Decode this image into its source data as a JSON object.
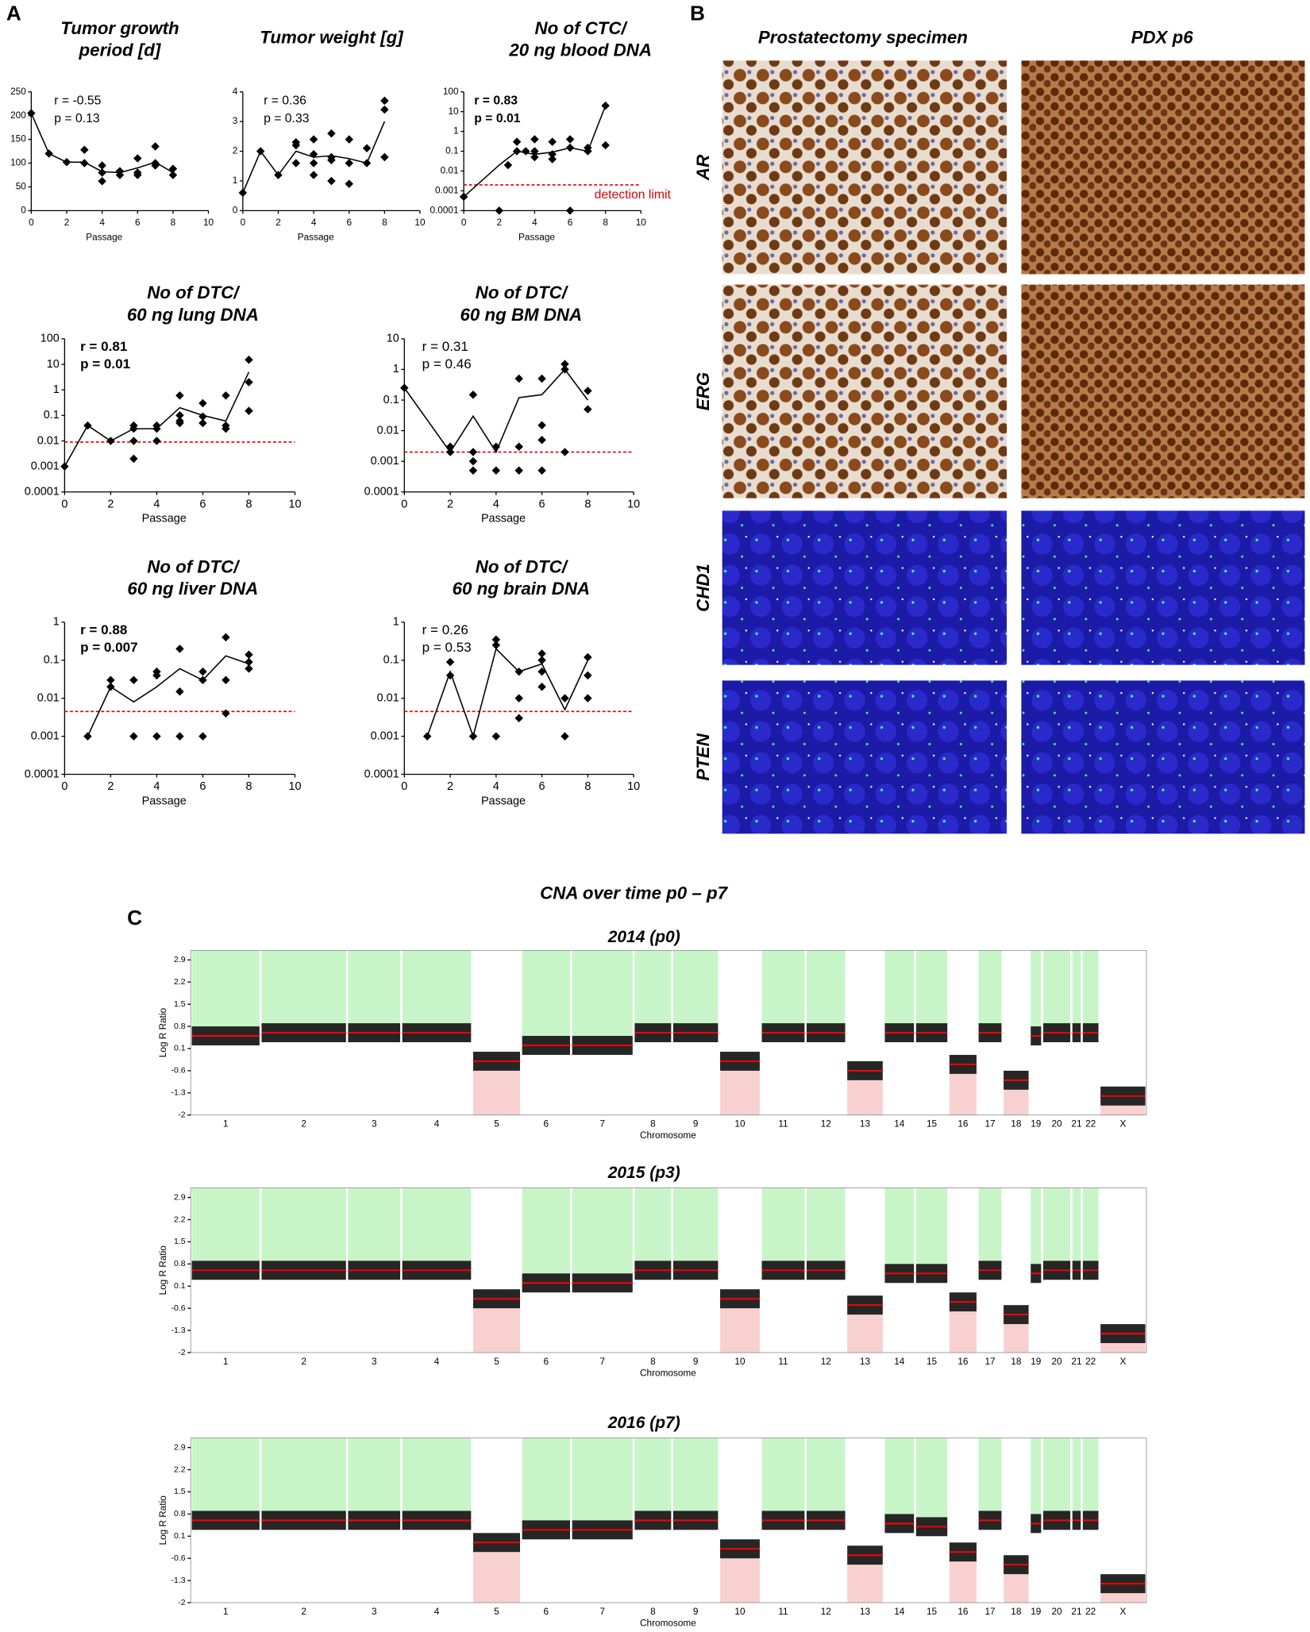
{
  "panel_labels": {
    "a": "A",
    "b": "B",
    "c": "C"
  },
  "images": {
    "columns": [
      "Prostatectomy specimen",
      "PDX p6"
    ],
    "rows": [
      "AR",
      "ERG",
      "CHD1",
      "PTEN"
    ]
  },
  "cna_title": "CNA over time p0 – p7",
  "chart_data": [
    {
      "type": "line",
      "title": [
        "Tumor growth",
        "period [d]"
      ],
      "stats": [
        "r = -0.55",
        "p = 0.13"
      ],
      "stats_bold": false,
      "xlabel": "Passage",
      "xlim": [
        0,
        10
      ],
      "xticks": [
        0,
        2,
        4,
        6,
        8,
        10
      ],
      "ylim": [
        0,
        250
      ],
      "yticks": [
        0,
        50,
        100,
        150,
        200,
        250
      ],
      "log": false,
      "color": "#000000",
      "line": {
        "x": [
          0,
          1,
          2,
          3,
          4,
          5,
          6,
          7,
          8
        ],
        "values": [
          205,
          120,
          102,
          102,
          82,
          80,
          90,
          102,
          80
        ]
      },
      "points": {
        "x": [
          0,
          1,
          2,
          3,
          3,
          4,
          4,
          4,
          5,
          5,
          6,
          6,
          6,
          7,
          7,
          7,
          8,
          8
        ],
        "values": [
          205,
          120,
          102,
          128,
          100,
          95,
          80,
          62,
          83,
          75,
          110,
          80,
          75,
          135,
          100,
          95,
          88,
          75
        ]
      }
    },
    {
      "type": "line",
      "title": [
        "Tumor weight [g]"
      ],
      "stats": [
        "r = 0.36",
        "p = 0.33"
      ],
      "stats_bold": false,
      "xlabel": "Passage",
      "xlim": [
        0,
        10
      ],
      "xticks": [
        0,
        2,
        4,
        6,
        8,
        10
      ],
      "ylim": [
        0,
        4
      ],
      "yticks": [
        0,
        1,
        2,
        3,
        4
      ],
      "log": false,
      "color": "#000000",
      "line": {
        "x": [
          0,
          1,
          2,
          3,
          4,
          5,
          6,
          7,
          8
        ],
        "values": [
          0.6,
          2.0,
          1.2,
          2.0,
          1.8,
          1.85,
          1.75,
          1.6,
          3.0
        ]
      },
      "points": {
        "x": [
          0,
          1,
          2,
          3,
          3,
          3,
          4,
          4,
          4,
          4,
          5,
          5,
          5,
          5,
          6,
          6,
          6,
          7,
          7,
          8,
          8,
          8
        ],
        "values": [
          0.6,
          2.0,
          1.2,
          2.3,
          2.2,
          1.6,
          2.4,
          1.9,
          1.6,
          1.2,
          2.6,
          1.8,
          1.7,
          1.0,
          2.4,
          1.6,
          0.9,
          2.1,
          1.6,
          3.7,
          3.4,
          1.8
        ]
      }
    },
    {
      "type": "line",
      "title": [
        "No of CTC/",
        "20 ng blood DNA"
      ],
      "stats": [
        "r = 0.83",
        "p = 0.01"
      ],
      "stats_bold": true,
      "xlabel": "Passage",
      "xlim": [
        0,
        10
      ],
      "xticks": [
        0,
        2,
        4,
        6,
        8,
        10
      ],
      "ylim": [
        0.0001,
        100
      ],
      "yticks": [
        0.0001,
        0.001,
        0.01,
        0.1,
        1,
        10,
        100
      ],
      "log": true,
      "color": "#000000",
      "threshold": {
        "value": 0.002,
        "color": "#e00000"
      },
      "threshold_label": "detection limit",
      "line": {
        "x": [
          0,
          2,
          3,
          4,
          5,
          6,
          7,
          8
        ],
        "values": [
          0.0005,
          0.02,
          0.1,
          0.07,
          0.09,
          0.15,
          0.1,
          20
        ]
      },
      "points": {
        "x": [
          0,
          2,
          2.5,
          3,
          3,
          3.5,
          4,
          4,
          4,
          5,
          5,
          5,
          6,
          6,
          6,
          7,
          7,
          8,
          8
        ],
        "values": [
          0.0005,
          0.0001,
          0.02,
          0.3,
          0.1,
          0.1,
          0.4,
          0.1,
          0.05,
          0.3,
          0.07,
          0.04,
          0.4,
          0.15,
          0.0001,
          0.15,
          0.1,
          20,
          0.2
        ]
      }
    },
    {
      "type": "line",
      "title": [
        "No of DTC/",
        "60 ng lung DNA"
      ],
      "stats": [
        "r = 0.81",
        "p = 0.01"
      ],
      "stats_bold": true,
      "xlabel": "Passage",
      "xlim": [
        0,
        10
      ],
      "xticks": [
        0,
        2,
        4,
        6,
        8,
        10
      ],
      "ylim": [
        0.0001,
        100
      ],
      "yticks": [
        0.0001,
        0.001,
        0.01,
        0.1,
        1,
        10,
        100
      ],
      "log": true,
      "color": "#000000",
      "threshold": {
        "value": 0.009,
        "color": "#e00000"
      },
      "line": {
        "x": [
          0,
          1,
          2,
          3,
          4,
          5,
          6,
          7,
          8
        ],
        "values": [
          0.001,
          0.04,
          0.01,
          0.03,
          0.03,
          0.2,
          0.1,
          0.06,
          5
        ]
      },
      "points": {
        "x": [
          0,
          1,
          2,
          3,
          3,
          3,
          3,
          4,
          4,
          4,
          5,
          5,
          5,
          5,
          6,
          6,
          6,
          7,
          7,
          7,
          8,
          8,
          8
        ],
        "values": [
          0.001,
          0.04,
          0.01,
          0.04,
          0.03,
          0.01,
          0.002,
          0.04,
          0.03,
          0.01,
          0.6,
          0.1,
          0.06,
          0.05,
          0.3,
          0.09,
          0.05,
          0.6,
          0.04,
          0.03,
          15,
          2,
          0.15
        ]
      }
    },
    {
      "type": "line",
      "title": [
        "No of DTC/",
        "60 ng BM DNA"
      ],
      "stats": [
        "r = 0.31",
        "p = 0.46"
      ],
      "stats_bold": false,
      "xlabel": "Passage",
      "xlim": [
        0,
        10
      ],
      "xticks": [
        0,
        2,
        4,
        6,
        8,
        10
      ],
      "ylim": [
        0.0001,
        10
      ],
      "yticks": [
        0.0001,
        0.001,
        0.01,
        0.1,
        1,
        10
      ],
      "log": true,
      "color": "#000000",
      "threshold": {
        "value": 0.002,
        "color": "#e00000"
      },
      "line": {
        "x": [
          0,
          2,
          3,
          4,
          5,
          6,
          7,
          8
        ],
        "values": [
          0.25,
          0.002,
          0.03,
          0.002,
          0.12,
          0.15,
          1,
          0.1
        ]
      },
      "points": {
        "x": [
          0,
          2,
          2,
          3,
          3,
          3,
          3,
          4,
          4,
          5,
          5,
          5,
          6,
          6,
          6,
          6,
          7,
          7,
          7,
          8,
          8
        ],
        "values": [
          0.25,
          0.003,
          0.002,
          0.15,
          0.002,
          0.001,
          0.0005,
          0.003,
          0.0005,
          0.5,
          0.003,
          0.0005,
          0.5,
          0.015,
          0.005,
          0.0005,
          1.5,
          1,
          0.002,
          0.2,
          0.05
        ]
      }
    },
    {
      "type": "line",
      "title": [
        "No of DTC/",
        "60 ng liver DNA"
      ],
      "stats": [
        "r = 0.88",
        "p = 0.007"
      ],
      "stats_bold": true,
      "xlabel": "Passage",
      "xlim": [
        0,
        10
      ],
      "xticks": [
        0,
        2,
        4,
        6,
        8,
        10
      ],
      "ylim": [
        0.0001,
        1
      ],
      "yticks": [
        0.0001,
        0.001,
        0.01,
        0.1,
        1
      ],
      "log": true,
      "color": "#000000",
      "threshold": {
        "value": 0.0045,
        "color": "#e00000"
      },
      "line": {
        "x": [
          1,
          2,
          3,
          4,
          5,
          6,
          7,
          8
        ],
        "values": [
          0.001,
          0.02,
          0.008,
          0.02,
          0.06,
          0.03,
          0.13,
          0.08
        ]
      },
      "points": {
        "x": [
          1,
          2,
          2,
          3,
          3,
          4,
          4,
          4,
          5,
          5,
          5,
          6,
          6,
          6,
          7,
          7,
          7,
          8,
          8,
          8
        ],
        "values": [
          0.001,
          0.03,
          0.02,
          0.03,
          0.001,
          0.05,
          0.04,
          0.001,
          0.2,
          0.015,
          0.001,
          0.05,
          0.03,
          0.001,
          0.4,
          0.03,
          0.004,
          0.14,
          0.09,
          0.06
        ]
      }
    },
    {
      "type": "line",
      "title": [
        "No of DTC/",
        "60 ng brain DNA"
      ],
      "stats": [
        "r = 0.26",
        "p = 0.53"
      ],
      "stats_bold": false,
      "xlabel": "Passage",
      "xlim": [
        0,
        10
      ],
      "xticks": [
        0,
        2,
        4,
        6,
        8,
        10
      ],
      "ylim": [
        0.0001,
        1
      ],
      "yticks": [
        0.0001,
        0.001,
        0.01,
        0.1,
        1
      ],
      "log": true,
      "color": "#000000",
      "threshold": {
        "value": 0.0045,
        "color": "#e00000"
      },
      "line": {
        "x": [
          1,
          2,
          3,
          4,
          5,
          6,
          7,
          8
        ],
        "values": [
          0.001,
          0.05,
          0.001,
          0.2,
          0.05,
          0.08,
          0.005,
          0.1
        ]
      },
      "points": {
        "x": [
          1,
          2,
          2,
          3,
          4,
          4,
          4,
          5,
          5,
          5,
          6,
          6,
          6,
          6,
          7,
          7,
          8,
          8,
          8
        ],
        "values": [
          0.001,
          0.09,
          0.04,
          0.001,
          0.35,
          0.25,
          0.001,
          0.05,
          0.01,
          0.003,
          0.15,
          0.1,
          0.05,
          0.02,
          0.01,
          0.001,
          0.12,
          0.04,
          0.01
        ]
      }
    },
    {
      "type": "cna",
      "title": "2014 (p0)",
      "ylabel": "Log R Ratio",
      "xlabel": "Chromosome",
      "color": "#ff0000",
      "cloud_color": "#000000",
      "ylim": [
        -2,
        3.2
      ],
      "yticks": [
        2.9,
        2.2,
        1.5,
        0.8,
        0.1,
        -0.6,
        -1.3,
        -2
      ],
      "categories": [
        "1",
        "2",
        "3",
        "4",
        "5",
        "6",
        "7",
        "8",
        "9",
        "10",
        "11",
        "12",
        "13",
        "14",
        "15",
        "16",
        "17",
        "18",
        "19",
        "20",
        "21",
        "22",
        "X"
      ],
      "values": [
        0.5,
        0.6,
        0.6,
        0.6,
        -0.3,
        0.2,
        0.2,
        0.6,
        0.6,
        -0.3,
        0.6,
        0.6,
        -0.6,
        0.6,
        0.6,
        -0.4,
        0.6,
        -0.9,
        0.5,
        0.6,
        0.6,
        0.6,
        -1.4
      ],
      "band_colors": [
        "#c8f5c8",
        "#c8f5c8",
        "#c8f5c8",
        "#c8f5c8",
        "#f9d0d0",
        "#c8f5c8",
        "#c8f5c8",
        "#c8f5c8",
        "#c8f5c8",
        "#f9d0d0",
        "#c8f5c8",
        "#c8f5c8",
        "#f9d0d0",
        "#c8f5c8",
        "#c8f5c8",
        "#f9d0d0",
        "#c8f5c8",
        "#f9d0d0",
        "#c8f5c8",
        "#c8f5c8",
        "#c8f5c8",
        "#c8f5c8",
        "#f9d0d0"
      ]
    },
    {
      "type": "cna",
      "title": "2015 (p3)",
      "ylabel": "Log R Ratio",
      "xlabel": "Chromosome",
      "color": "#ff0000",
      "cloud_color": "#000000",
      "ylim": [
        -2,
        3.2
      ],
      "yticks": [
        2.9,
        2.2,
        1.5,
        0.8,
        0.1,
        -0.6,
        -1.3,
        -2
      ],
      "categories": [
        "1",
        "2",
        "3",
        "4",
        "5",
        "6",
        "7",
        "8",
        "9",
        "10",
        "11",
        "12",
        "13",
        "14",
        "15",
        "16",
        "17",
        "18",
        "19",
        "20",
        "21",
        "22",
        "X"
      ],
      "values": [
        0.6,
        0.6,
        0.6,
        0.6,
        -0.3,
        0.2,
        0.2,
        0.6,
        0.6,
        -0.3,
        0.6,
        0.6,
        -0.5,
        0.5,
        0.5,
        -0.4,
        0.6,
        -0.8,
        0.5,
        0.6,
        0.6,
        0.6,
        -1.4
      ],
      "band_colors": [
        "#c8f5c8",
        "#c8f5c8",
        "#c8f5c8",
        "#c8f5c8",
        "#f9d0d0",
        "#c8f5c8",
        "#c8f5c8",
        "#c8f5c8",
        "#c8f5c8",
        "#f9d0d0",
        "#c8f5c8",
        "#c8f5c8",
        "#f9d0d0",
        "#c8f5c8",
        "#c8f5c8",
        "#f9d0d0",
        "#c8f5c8",
        "#f9d0d0",
        "#c8f5c8",
        "#c8f5c8",
        "#c8f5c8",
        "#c8f5c8",
        "#f9d0d0"
      ]
    },
    {
      "type": "cna",
      "title": "2016 (p7)",
      "ylabel": "Log R Ratio",
      "xlabel": "Chromosome",
      "color": "#ff0000",
      "cloud_color": "#000000",
      "ylim": [
        -2,
        3.2
      ],
      "yticks": [
        2.9,
        2.2,
        1.5,
        0.8,
        0.1,
        -0.6,
        -1.3,
        -2
      ],
      "categories": [
        "1",
        "2",
        "3",
        "4",
        "5",
        "6",
        "7",
        "8",
        "9",
        "10",
        "11",
        "12",
        "13",
        "14",
        "15",
        "16",
        "17",
        "18",
        "19",
        "20",
        "21",
        "22",
        "X"
      ],
      "values": [
        0.6,
        0.6,
        0.6,
        0.6,
        -0.1,
        0.3,
        0.3,
        0.6,
        0.6,
        -0.3,
        0.6,
        0.6,
        -0.5,
        0.5,
        0.4,
        -0.4,
        0.6,
        -0.8,
        0.5,
        0.6,
        0.6,
        0.6,
        -1.4
      ],
      "band_colors": [
        "#c8f5c8",
        "#c8f5c8",
        "#c8f5c8",
        "#c8f5c8",
        "#f9d0d0",
        "#c8f5c8",
        "#c8f5c8",
        "#c8f5c8",
        "#c8f5c8",
        "#f9d0d0",
        "#c8f5c8",
        "#c8f5c8",
        "#f9d0d0",
        "#c8f5c8",
        "#c8f5c8",
        "#f9d0d0",
        "#c8f5c8",
        "#f9d0d0",
        "#c8f5c8",
        "#c8f5c8",
        "#c8f5c8",
        "#c8f5c8",
        "#f9d0d0"
      ]
    }
  ]
}
